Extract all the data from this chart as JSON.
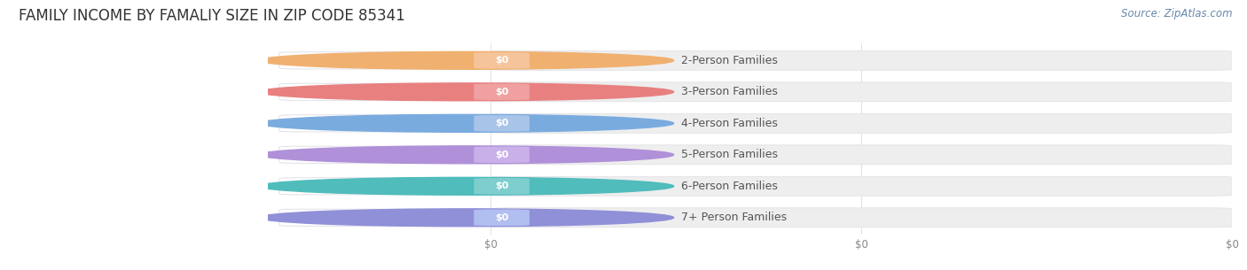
{
  "title": "FAMILY INCOME BY FAMALIY SIZE IN ZIP CODE 85341",
  "source_text": "Source: ZipAtlas.com",
  "categories": [
    "2-Person Families",
    "3-Person Families",
    "4-Person Families",
    "5-Person Families",
    "6-Person Families",
    "7+ Person Families"
  ],
  "values": [
    0,
    0,
    0,
    0,
    0,
    0
  ],
  "bar_colors": [
    "#f5c49a",
    "#f0a0a0",
    "#a8c4e8",
    "#c9b0e8",
    "#7ecece",
    "#b0bef0"
  ],
  "circle_colors": [
    "#f0b070",
    "#e88080",
    "#7aabdf",
    "#b090d8",
    "#50bcbc",
    "#9090d8"
  ],
  "bg_color": "#ffffff",
  "bar_track_color": "#eeeeee",
  "bar_track_edge": "#e0e0e8",
  "label_pill_color": "#ffffff",
  "label_pill_edge": "#e0e0e8",
  "title_fontsize": 12,
  "label_fontsize": 9,
  "value_fontsize": 8,
  "source_fontsize": 8.5,
  "x_tick_labels": [
    "$0",
    "$0",
    "$0"
  ],
  "x_tick_positions": [
    0.0,
    0.5,
    1.0
  ],
  "text_color": "#555555",
  "source_color": "#6688aa"
}
